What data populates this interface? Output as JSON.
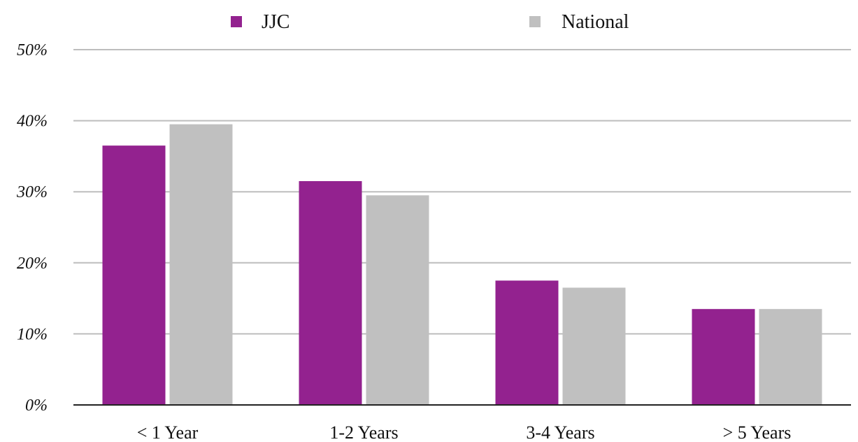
{
  "chart_data": {
    "type": "bar",
    "categories": [
      "< 1 Year",
      "1-2 Years",
      "3-4 Years",
      "> 5 Years"
    ],
    "series": [
      {
        "name": "JJC",
        "color": "#93228f",
        "values": [
          36.5,
          31.5,
          17.5,
          13.5
        ]
      },
      {
        "name": "National",
        "color": "#c0c0c0",
        "values": [
          39.5,
          29.5,
          16.5,
          13.5
        ]
      }
    ],
    "ylim": [
      0,
      50
    ],
    "yticks": [
      0,
      10,
      20,
      30,
      40,
      50
    ],
    "ytick_labels": [
      "0%",
      "10%",
      "20%",
      "30%",
      "40%",
      "50%"
    ],
    "grid": true,
    "legend": "top-center",
    "title": "",
    "xlabel": "",
    "ylabel": ""
  }
}
